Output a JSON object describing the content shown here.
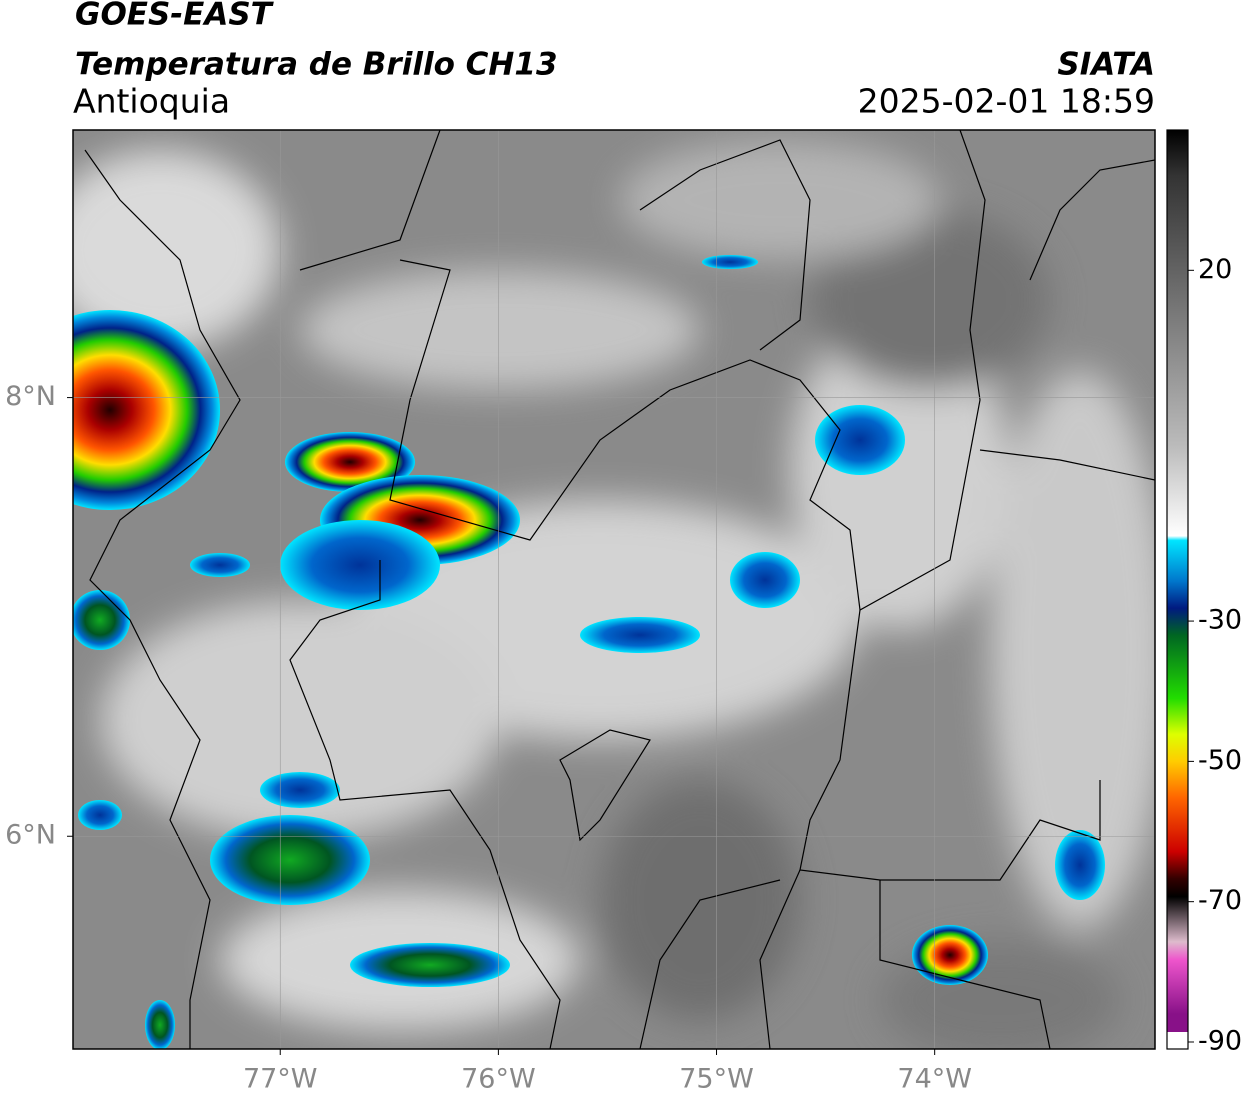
{
  "header": {
    "title": "GOES-EAST",
    "subtitle": "Temperatura de Brillo CH13",
    "region": "Antioquia",
    "source": "SIATA",
    "datetime": "2025-02-01 18:59"
  },
  "map": {
    "lon_range": [
      -77.95,
      -72.99
    ],
    "lat_range": [
      5.03,
      9.22
    ],
    "lon_ticks": [
      {
        "value": -77,
        "label": "77°W"
      },
      {
        "value": -76,
        "label": "76°W"
      },
      {
        "value": -75,
        "label": "75°W"
      },
      {
        "value": -74,
        "label": "74°W"
      }
    ],
    "lat_ticks": [
      {
        "value": 8,
        "label": "8°N"
      },
      {
        "value": 6,
        "label": "6°N"
      }
    ]
  },
  "colorbar": {
    "range": [
      -91,
      40
    ],
    "ticks": [
      20,
      -30,
      -50,
      -70,
      -90
    ]
  }
}
